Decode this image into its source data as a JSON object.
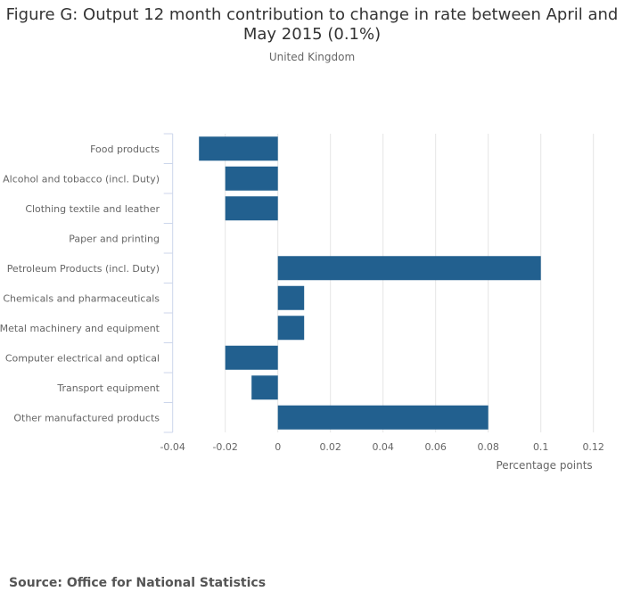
{
  "chart_data": {
    "type": "bar",
    "orientation": "horizontal",
    "title": "Figure G: Output 12 month contribution to change in rate between April and May 2015 (0.1%)",
    "subtitle": "United Kingdom",
    "categories": [
      "Food products",
      "Alcohol and tobacco (incl. Duty)",
      "Clothing textile and leather",
      "Paper and printing",
      "Petroleum Products (incl. Duty)",
      "Chemicals and pharmaceuticals",
      "Metal machinery and equipment",
      "Computer electrical and optical",
      "Transport equipment",
      "Other manufactured products"
    ],
    "values": [
      -0.03,
      -0.02,
      -0.02,
      0,
      0.1,
      0.01,
      0.01,
      -0.02,
      -0.01,
      0.08
    ],
    "xlabel": "Percentage points",
    "ylabel": "",
    "xlim": [
      -0.04,
      0.12
    ],
    "xticks": [
      -0.04,
      -0.02,
      0,
      0.02,
      0.04,
      0.06,
      0.08,
      0.1,
      0.12
    ],
    "xtick_labels": [
      "-0.04",
      "-0.02",
      "0",
      "0.02",
      "0.04",
      "0.06",
      "0.08",
      "0.1",
      "0.12"
    ],
    "grid": true,
    "legend": "none",
    "bar_color": "#22608f"
  },
  "source": "Source: Office for National Statistics"
}
